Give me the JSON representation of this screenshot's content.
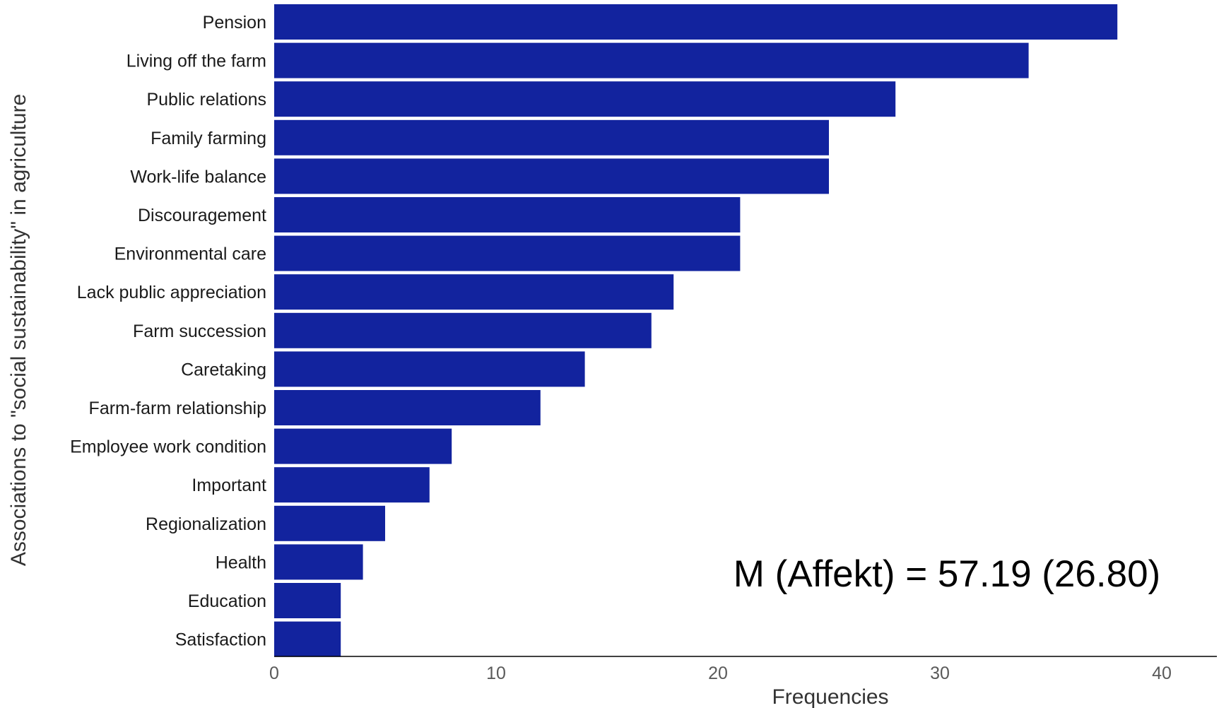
{
  "chart_data": {
    "type": "bar",
    "orientation": "horizontal",
    "categories": [
      "Pension",
      "Living off the farm",
      "Public relations",
      "Family farming",
      "Work-life balance",
      "Discouragement",
      "Environmental care",
      "Lack public appreciation",
      "Farm succession",
      "Caretaking",
      "Farm-farm relationship",
      "Employee work condition",
      "Important",
      "Regionalization",
      "Health",
      "Education",
      "Satisfaction"
    ],
    "values": [
      38,
      34,
      28,
      25,
      25,
      21,
      21,
      18,
      17,
      14,
      12,
      8,
      7,
      5,
      4,
      3,
      3
    ],
    "xlabel": "Frequencies",
    "ylabel": "Associations to \"social sustainability\" in agriculture",
    "xlim": [
      0,
      42.5
    ],
    "xticks": [
      0,
      10,
      20,
      30,
      40
    ],
    "grid": false,
    "legend": "none",
    "bar_color": "#12239e",
    "annotation": "M (Affekt) = 57.19 (26.80)"
  }
}
